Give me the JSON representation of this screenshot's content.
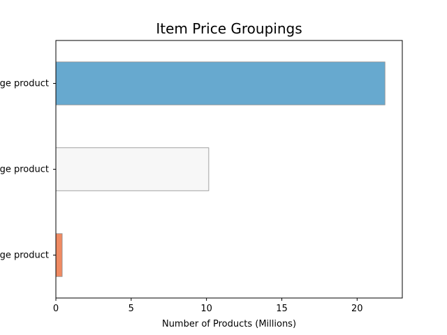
{
  "chart_data": {
    "type": "bar",
    "orientation": "horizontal",
    "title": "Item Price Groupings",
    "xlabel": "Number of Products (Millions)",
    "ylabel": "",
    "categories": [
      "ge product",
      "ge product",
      "ge product"
    ],
    "values": [
      21.85,
      10.15,
      0.42
    ],
    "colors": [
      "#67a9cf",
      "#f7f7f7",
      "#ef8a62"
    ],
    "edge_color": "#8c8c8c",
    "xlim": [
      0,
      23
    ],
    "xticks": [
      0,
      5,
      10,
      15,
      20
    ],
    "grid": false,
    "legend": "none"
  }
}
